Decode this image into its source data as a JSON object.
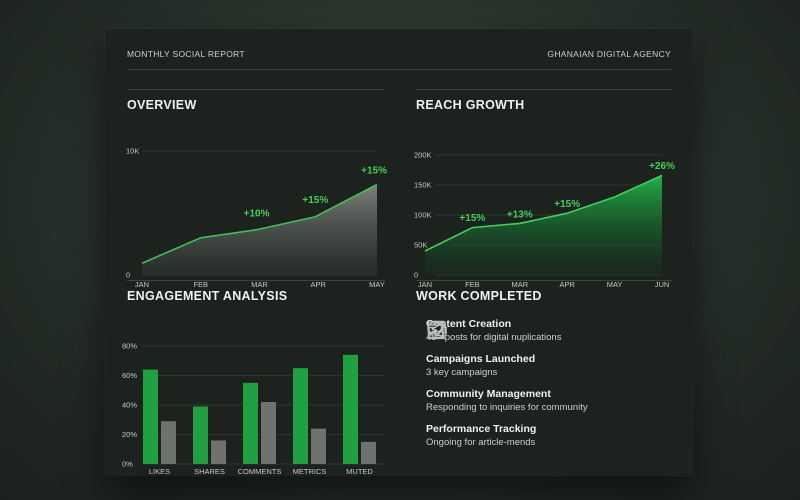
{
  "header": {
    "left": "MONTHLY SOCIAL REPORT",
    "right": "GHANAIAN DIGITAL AGENCY"
  },
  "colors": {
    "accent": "#3fd15a",
    "bar_primary": "#1fa142",
    "bar_secondary": "#6e736f",
    "background": "#1d221f"
  },
  "chart_data": [
    {
      "type": "area",
      "title": "OVERVIEW",
      "categories": [
        "JAN",
        "FEB",
        "MAR",
        "APR",
        "MAY"
      ],
      "x": [
        0,
        1,
        1.95,
        2.95,
        4
      ],
      "values": [
        950,
        3000,
        3650,
        4700,
        7300
      ],
      "ylim": [
        0,
        10000
      ],
      "yticks": [
        "0",
        "10K"
      ],
      "annotations": [
        {
          "text": "+10%",
          "x": 1.95,
          "y": 4700
        },
        {
          "text": "+15%",
          "x": 2.95,
          "y": 5800
        },
        {
          "text": "+15%",
          "x": 3.95,
          "y": 8200
        }
      ]
    },
    {
      "type": "area",
      "title": "REACH GROWTH",
      "categories": [
        "JAN",
        "FEB",
        "MAR",
        "APR",
        "MAY",
        "JUN"
      ],
      "values": [
        40000,
        79000,
        86000,
        103000,
        130000,
        166000
      ],
      "ylim": [
        0,
        200000
      ],
      "yticks": [
        "0",
        "50K",
        "100K",
        "150K",
        "200K"
      ],
      "annotations": [
        {
          "text": "+15%",
          "x": 1,
          "y": 90000
        },
        {
          "text": "+13%",
          "x": 2,
          "y": 96000
        },
        {
          "text": "+15%",
          "x": 3,
          "y": 113000
        },
        {
          "text": "+26%",
          "x": 5,
          "y": 177000
        }
      ]
    },
    {
      "type": "bar",
      "title": "ENGAGEMENT ANALYSIS",
      "categories": [
        "LIKES",
        "SHARES",
        "COMMENTS",
        "METRICS",
        "MUTED"
      ],
      "series": [
        {
          "values": [
            64,
            39,
            55,
            65,
            74
          ]
        },
        {
          "values": [
            29,
            16,
            42,
            24,
            15
          ]
        }
      ],
      "ylim": [
        0,
        80
      ],
      "yticks": [
        "0%",
        "20%",
        "40%",
        "60%",
        "80%"
      ]
    }
  ],
  "work": {
    "title": "WORK COMPLETED",
    "items": [
      {
        "icon": "image-gallery-icon",
        "title": "Content Creation",
        "desc": "45+ posts for digital nuplications"
      },
      {
        "icon": "megaphone-icon",
        "title": "Campaigns Launched",
        "desc": "3 key campaigns"
      },
      {
        "icon": "chat-bubbles-icon",
        "title": "Community Management",
        "desc": "Responding to inquiries for community"
      },
      {
        "icon": "trend-chart-icon",
        "title": "Performance Tracking",
        "desc": "Ongoing for article-mends"
      }
    ]
  }
}
